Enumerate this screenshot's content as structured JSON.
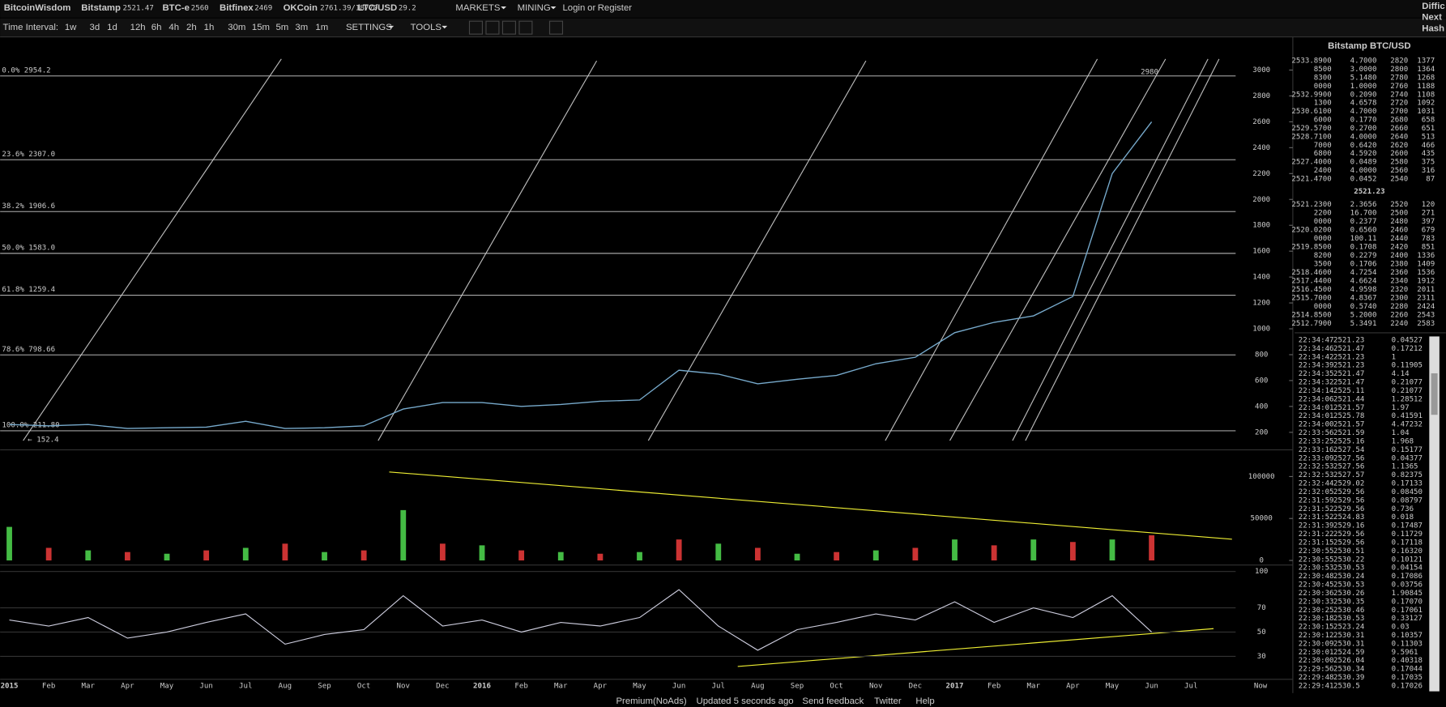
{
  "header": {
    "brand": "BitcoinWisdom",
    "tickers": [
      {
        "name": "Bitstamp",
        "price": "2521.47"
      },
      {
        "name": "BTC-e",
        "price": "2560"
      },
      {
        "name": "Bitfinex",
        "price": "2469"
      },
      {
        "name": "OKCoin",
        "price": "2761.39/18770"
      },
      {
        "name": "LTC/USD",
        "price": "29.2"
      }
    ],
    "menus": [
      "MARKETS",
      "MINING"
    ],
    "login": "Login",
    "or": "or",
    "register": "Register",
    "right_cut": [
      "Diffic",
      "Next",
      "Hash"
    ]
  },
  "toolbar": {
    "label": "Time Interval:",
    "intervals": [
      "1w",
      "3d",
      "1d",
      "12h",
      "6h",
      "4h",
      "2h",
      "1h",
      "30m",
      "15m",
      "5m",
      "3m",
      "1m"
    ],
    "settings": "SETTINGS",
    "tools": "TOOLS"
  },
  "chart": {
    "price_yticks": [
      3000,
      2800,
      2600,
      2400,
      2200,
      2000,
      1800,
      1600,
      1400,
      1200,
      1000,
      800,
      600,
      400,
      200
    ],
    "price": [
      260,
      250,
      260,
      230,
      235,
      240,
      285,
      230,
      235,
      250,
      380,
      430,
      430,
      400,
      415,
      440,
      450,
      680,
      650,
      575,
      610,
      640,
      730,
      780,
      970,
      1050,
      1100,
      1250,
      2200,
      2600
    ],
    "fib": [
      {
        "label": "0.0% 2954.2",
        "value": 2954.2
      },
      {
        "label": "23.6% 2307.0",
        "value": 2307.0
      },
      {
        "label": "38.2% 1906.6",
        "value": 1906.6
      },
      {
        "label": "50.0% 1583.0",
        "value": 1583.0
      },
      {
        "label": "61.8% 1259.4",
        "value": 1259.4
      },
      {
        "label": "78.6% 798.66",
        "value": 798.66
      },
      {
        "label": "100.0% 211.80",
        "value": 211.8
      }
    ],
    "annotations": [
      "2980",
      "← 152.4"
    ],
    "xlabels": [
      "2015",
      "Feb",
      "Mar",
      "Apr",
      "May",
      "Jun",
      "Jul",
      "Aug",
      "Sep",
      "Oct",
      "Nov",
      "Dec",
      "2016",
      "Feb",
      "Mar",
      "Apr",
      "May",
      "Jun",
      "Jul",
      "Aug",
      "Sep",
      "Oct",
      "Nov",
      "Dec",
      "2017",
      "Feb",
      "Mar",
      "Apr",
      "May",
      "Jun",
      "Jul"
    ],
    "now_label": "Now",
    "volume_yticks": [
      100000,
      50000,
      0
    ],
    "volume": [
      40000,
      15000,
      12000,
      10000,
      8000,
      12000,
      15000,
      20000,
      10000,
      12000,
      60000,
      20000,
      18000,
      12000,
      10000,
      8000,
      10000,
      25000,
      20000,
      15000,
      8000,
      10000,
      12000,
      15000,
      25000,
      18000,
      25000,
      22000,
      25000,
      30000
    ],
    "rsi_yticks": [
      100,
      70,
      50,
      30
    ],
    "rsi": [
      60,
      55,
      62,
      45,
      50,
      58,
      65,
      40,
      48,
      52,
      80,
      55,
      60,
      50,
      58,
      55,
      62,
      85,
      55,
      35,
      52,
      58,
      65,
      60,
      75,
      58,
      70,
      62,
      80,
      50
    ]
  },
  "orderbook": {
    "title": "Bitstamp BTC/USD",
    "asks": [
      [
        "2533.8900",
        "4.7000",
        "2820",
        "1377"
      ],
      [
        "8500",
        "3.0000",
        "2800",
        "1364"
      ],
      [
        "8300",
        "5.1480",
        "2780",
        "1268"
      ],
      [
        "0000",
        "1.0000",
        "2760",
        "1188"
      ],
      [
        "2532.9900",
        "0.2090",
        "2740",
        "1108"
      ],
      [
        "1300",
        "4.6578",
        "2720",
        "1092"
      ],
      [
        "2530.6100",
        "4.7000",
        "2700",
        "1031"
      ],
      [
        "6000",
        "0.1770",
        "2680",
        "658"
      ],
      [
        "2529.5700",
        "0.2700",
        "2660",
        "651"
      ],
      [
        "2528.7100",
        "4.0000",
        "2640",
        "513"
      ],
      [
        "7000",
        "0.6420",
        "2620",
        "466"
      ],
      [
        "6800",
        "4.5920",
        "2600",
        "435"
      ],
      [
        "2527.4000",
        "0.0489",
        "2580",
        "375"
      ],
      [
        "2400",
        "4.0000",
        "2560",
        "316"
      ],
      [
        "2521.4700",
        "0.0452",
        "2540",
        "87"
      ]
    ],
    "last": "2521.23",
    "bids": [
      [
        "2521.2300",
        "2.3656",
        "2520",
        "120"
      ],
      [
        "2200",
        "16.700",
        "2500",
        "271"
      ],
      [
        "0000",
        "0.2377",
        "2480",
        "397"
      ],
      [
        "2520.0200",
        "0.6560",
        "2460",
        "679"
      ],
      [
        "0000",
        "100.11",
        "2440",
        "783"
      ],
      [
        "2519.8500",
        "0.1708",
        "2420",
        "851"
      ],
      [
        "8200",
        "0.2279",
        "2400",
        "1336"
      ],
      [
        "3500",
        "0.1706",
        "2380",
        "1409"
      ],
      [
        "2518.4600",
        "4.7254",
        "2360",
        "1536"
      ],
      [
        "2517.4400",
        "4.6624",
        "2340",
        "1912"
      ],
      [
        "2516.4500",
        "4.9598",
        "2320",
        "2011"
      ],
      [
        "2515.7000",
        "4.8367",
        "2300",
        "2311"
      ],
      [
        "0000",
        "0.5740",
        "2280",
        "2424"
      ],
      [
        "2514.8500",
        "5.2000",
        "2260",
        "2543"
      ],
      [
        "2512.7900",
        "5.3491",
        "2240",
        "2583"
      ]
    ]
  },
  "trades": [
    [
      "22:34:47",
      "2521.23",
      "0.04527",
      "#e33"
    ],
    [
      "22:34:46",
      "2521.47",
      "0.17212",
      "#5c5"
    ],
    [
      "22:34:42",
      "2521.23",
      "1",
      "#e33"
    ],
    [
      "22:34:39",
      "2521.23",
      "0.11905",
      "#e33"
    ],
    [
      "22:34:35",
      "2521.47",
      "4.14",
      "#e33"
    ],
    [
      "22:34:32",
      "2521.47",
      "0.21077",
      "#e33"
    ],
    [
      "22:34:14",
      "2525.11",
      "0.21077",
      "#5c5"
    ],
    [
      "22:34:06",
      "2521.44",
      "1.28512",
      "#e33"
    ],
    [
      "22:34:01",
      "2521.57",
      "1.97",
      "#e33"
    ],
    [
      "22:34:01",
      "2525.78",
      "0.41591",
      "#5c5"
    ],
    [
      "22:34:00",
      "2521.57",
      "4.47232",
      "#e33"
    ],
    [
      "22:33:56",
      "2521.59",
      "1.04",
      "#e33"
    ],
    [
      "22:33:25",
      "2525.16",
      "1.968",
      "#e33"
    ],
    [
      "22:33:16",
      "2527.54",
      "0.15177",
      "#5c5"
    ],
    [
      "22:33:09",
      "2527.56",
      "0.04377",
      "#5c5"
    ],
    [
      "22:32:53",
      "2527.56",
      "1.1365",
      "#5c5"
    ],
    [
      "22:32:53",
      "2527.57",
      "0.82375",
      "#5c5"
    ],
    [
      "22:32:44",
      "2529.02",
      "0.17133",
      "#5c5"
    ],
    [
      "22:32:05",
      "2529.56",
      "0.08450",
      "#5c5"
    ],
    [
      "22:31:59",
      "2529.56",
      "0.08797",
      "#5c5"
    ],
    [
      "22:31:52",
      "2529.56",
      "0.736",
      "#5c5"
    ],
    [
      "22:31:52",
      "2524.83",
      "0.018",
      "#e33"
    ],
    [
      "22:31:39",
      "2529.16",
      "0.17487",
      "#e33"
    ],
    [
      "22:31:22",
      "2529.56",
      "0.11729",
      "#5c5"
    ],
    [
      "22:31:15",
      "2529.56",
      "0.17118",
      "#5c5"
    ],
    [
      "22:30:55",
      "2530.51",
      "0.16320",
      "#5c5"
    ],
    [
      "22:30:55",
      "2530.22",
      "0.10121",
      "#e33"
    ],
    [
      "22:30:53",
      "2530.53",
      "0.04154",
      "#5c5"
    ],
    [
      "22:30:48",
      "2530.24",
      "0.17086",
      "#5c5"
    ],
    [
      "22:30:45",
      "2530.53",
      "0.03756",
      "#5c5"
    ],
    [
      "22:30:36",
      "2530.26",
      "1.90845",
      "#5c5"
    ],
    [
      "22:30:33",
      "2530.35",
      "0.17070",
      "#5c5"
    ],
    [
      "22:30:25",
      "2530.46",
      "0.17061",
      "#5c5"
    ],
    [
      "22:30:18",
      "2530.53",
      "0.33127",
      "#e33"
    ],
    [
      "22:30:15",
      "2523.24",
      "0.03",
      "#e33"
    ],
    [
      "22:30:12",
      "2530.31",
      "0.10357",
      "#5c5"
    ],
    [
      "22:30:09",
      "2530.31",
      "0.11303",
      "#5c5"
    ],
    [
      "22:30:01",
      "2524.59",
      "9.5961",
      "#e33"
    ],
    [
      "22:30:00",
      "2526.04",
      "0.40318",
      "#e33"
    ],
    [
      "22:29:56",
      "2530.34",
      "0.17044",
      "#5c5"
    ],
    [
      "22:29:48",
      "2530.39",
      "0.17035",
      "#5c5"
    ],
    [
      "22:29:41",
      "2530.5",
      "0.17026",
      "#5c5"
    ]
  ],
  "footer": [
    "Premium(NoAds)",
    "Updated 5 seconds ago",
    "Send feedback",
    "Twitter",
    "Help"
  ]
}
